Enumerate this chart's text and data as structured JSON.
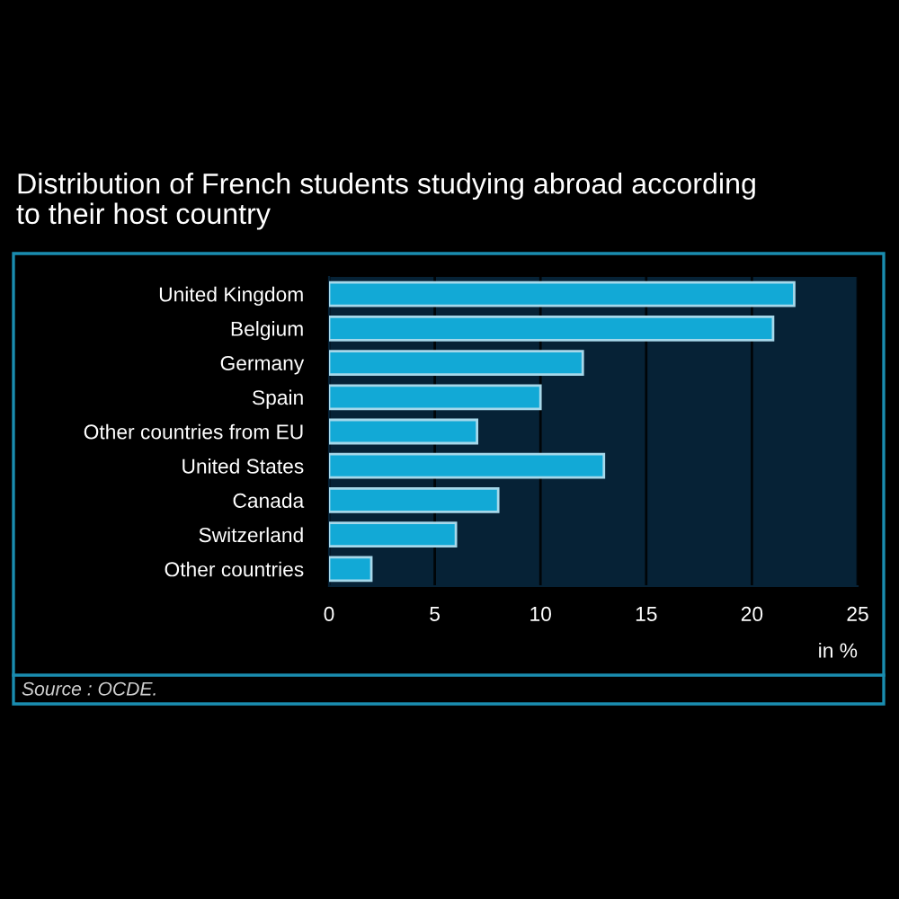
{
  "chart_data": {
    "type": "bar",
    "orientation": "horizontal",
    "title": "Distribution of French students studying abroad according\nto their host country",
    "xlabel": "in %",
    "categories": [
      "United Kingdom",
      "Belgium",
      "Germany",
      "Spain",
      "Other countries from EU",
      "United States",
      "Canada",
      "Switzerland",
      "Other countries"
    ],
    "values": [
      22,
      21,
      12,
      10,
      7,
      13,
      8,
      6,
      2
    ],
    "color": "#12a9d6",
    "xlim": [
      0,
      25
    ],
    "xticks": [
      0,
      5,
      10,
      15,
      20,
      25
    ],
    "grid": "x",
    "annotations": [
      "Source : OCDE."
    ]
  }
}
